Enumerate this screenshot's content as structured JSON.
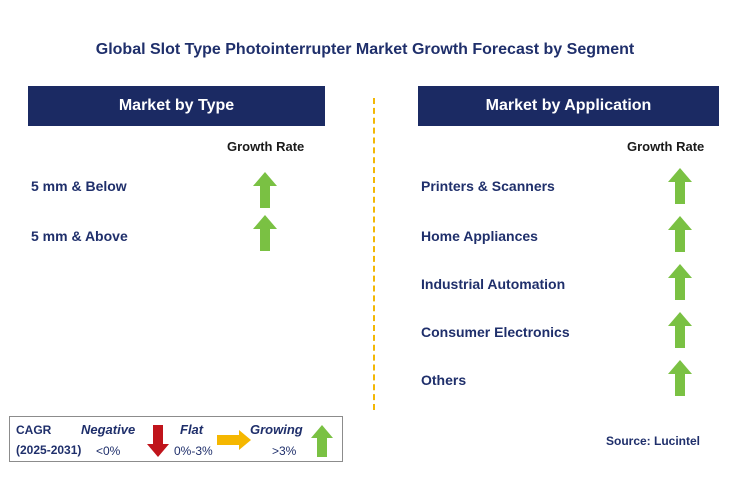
{
  "title": "Global Slot Type Photointerrupter Market Growth Forecast by Segment",
  "left_panel": {
    "header": "Market by Type",
    "growth_label": "Growth Rate",
    "items": [
      {
        "label": "5 mm & Below",
        "trend": "growing"
      },
      {
        "label": "5 mm & Above",
        "trend": "growing"
      }
    ]
  },
  "right_panel": {
    "header": "Market by Application",
    "growth_label": "Growth Rate",
    "items": [
      {
        "label": "Printers & Scanners",
        "trend": "growing"
      },
      {
        "label": "Home Appliances",
        "trend": "growing"
      },
      {
        "label": "Industrial Automation",
        "trend": "growing"
      },
      {
        "label": "Consumer Electronics",
        "trend": "growing"
      },
      {
        "label": "Others",
        "trend": "growing"
      }
    ]
  },
  "legend": {
    "cagr_label": "CAGR",
    "period": "(2025-2031)",
    "negative": {
      "label": "Negative",
      "range": "<0%",
      "icon": "red-down-arrow-icon"
    },
    "flat": {
      "label": "Flat",
      "range": "0%-3%",
      "icon": "orange-right-arrow-icon"
    },
    "growing": {
      "label": "Growing",
      "range": ">3%",
      "icon": "green-up-arrow-icon"
    }
  },
  "source": "Source: Lucintel",
  "colors": {
    "header_bg": "#1b2a63",
    "title_text": "#1f2f6b",
    "divider": "#f2b705",
    "growing": "#7ac143",
    "negative": "#c0141b",
    "flat": "#f5b700"
  }
}
